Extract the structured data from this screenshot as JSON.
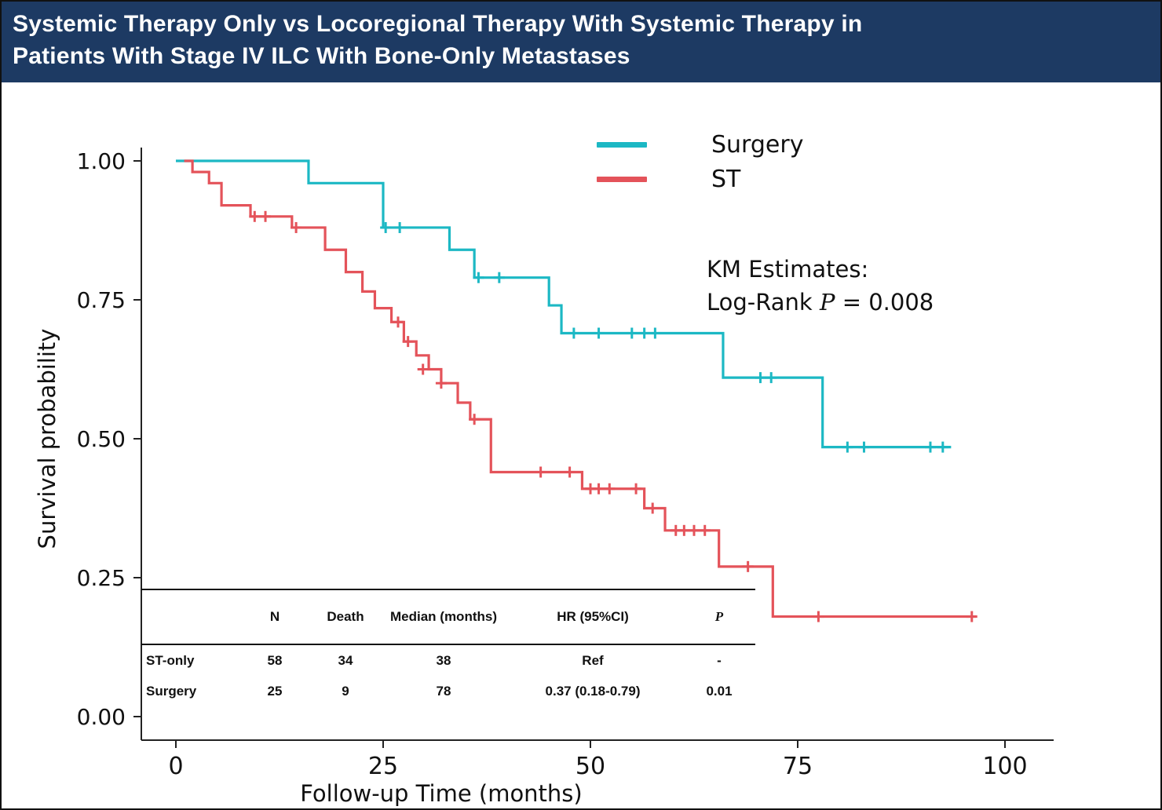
{
  "header": {
    "title_line1": "Systemic Therapy Only vs Locoregional Therapy With Systemic Therapy in",
    "title_line2": "Patients With Stage IV ILC With Bone-Only Metastases",
    "bg_color": "#1d3a63",
    "text_color": "#ffffff"
  },
  "axes": {
    "x_label": "Follow-up Time (months)",
    "y_label": "Survival probability",
    "x_ticks": [
      {
        "value": 0,
        "label": "0"
      },
      {
        "value": 25,
        "label": "25"
      },
      {
        "value": 50,
        "label": "50"
      },
      {
        "value": 75,
        "label": "75"
      },
      {
        "value": 100,
        "label": "100"
      }
    ],
    "y_ticks": [
      {
        "value": 1.0,
        "label": "1.00"
      },
      {
        "value": 0.75,
        "label": "0.75"
      },
      {
        "value": 0.5,
        "label": "0.50"
      },
      {
        "value": 0.25,
        "label": "0.25"
      },
      {
        "value": 0.0,
        "label": "0.00"
      }
    ]
  },
  "legend": {
    "items": [
      {
        "label": "Surgery",
        "color": "#1cb8c4"
      },
      {
        "label": "ST",
        "color": "#e4535a"
      }
    ]
  },
  "annotation": {
    "line1": "KM Estimates:",
    "logrank_prefix": "Log-Rank",
    "p_symbol": "P",
    "logrank_value": "= 0.008"
  },
  "table": {
    "headers": [
      "",
      "N",
      "Death",
      "Median (months)",
      "HR (95%CI)",
      "P"
    ],
    "rows": [
      {
        "label": "ST-only",
        "n": "58",
        "death": "34",
        "median": "38",
        "hr": "Ref",
        "p": "-"
      },
      {
        "label": "Surgery",
        "n": "25",
        "death": "9",
        "median": "78",
        "hr": "0.37 (0.18-0.79)",
        "p": "0.01"
      }
    ]
  },
  "chart_data": {
    "type": "line",
    "subtype": "kaplan-meier-step",
    "title": "",
    "xlabel": "Follow-up Time (months)",
    "ylabel": "Survival probability",
    "xlim": [
      0,
      100
    ],
    "ylim": [
      0,
      1
    ],
    "grid": false,
    "legend_position": "top-right-inside",
    "km_annotation": "Log-Rank P = 0.008",
    "series": [
      {
        "name": "Surgery",
        "color": "#1cb8c4",
        "steps": [
          [
            0,
            1.0
          ],
          [
            16,
            0.96
          ],
          [
            25,
            0.88
          ],
          [
            33,
            0.84
          ],
          [
            36,
            0.79
          ],
          [
            45,
            0.74
          ],
          [
            46.5,
            0.69
          ],
          [
            66,
            0.61
          ],
          [
            78,
            0.485
          ]
        ],
        "end": 93.5,
        "censors": [
          [
            25.3,
            0.88
          ],
          [
            27,
            0.88
          ],
          [
            36.5,
            0.79
          ],
          [
            39,
            0.79
          ],
          [
            48,
            0.69
          ],
          [
            51,
            0.69
          ],
          [
            55,
            0.69
          ],
          [
            56.5,
            0.69
          ],
          [
            57.8,
            0.69
          ],
          [
            70.5,
            0.61
          ],
          [
            71.8,
            0.61
          ],
          [
            81,
            0.485
          ],
          [
            83,
            0.485
          ],
          [
            91,
            0.485
          ],
          [
            92.5,
            0.485
          ]
        ]
      },
      {
        "name": "ST",
        "color": "#e4535a",
        "steps": [
          [
            1,
            1.0
          ],
          [
            2,
            0.98
          ],
          [
            4,
            0.96
          ],
          [
            5.5,
            0.92
          ],
          [
            9,
            0.9
          ],
          [
            14,
            0.88
          ],
          [
            18,
            0.84
          ],
          [
            20.5,
            0.8
          ],
          [
            22.5,
            0.765
          ],
          [
            24,
            0.735
          ],
          [
            26,
            0.71
          ],
          [
            27.5,
            0.675
          ],
          [
            29,
            0.65
          ],
          [
            30.5,
            0.625
          ],
          [
            32,
            0.6
          ],
          [
            34,
            0.565
          ],
          [
            35.5,
            0.535
          ],
          [
            38,
            0.44
          ],
          [
            49,
            0.41
          ],
          [
            56.5,
            0.375
          ],
          [
            59,
            0.335
          ],
          [
            65.5,
            0.27
          ],
          [
            72,
            0.18
          ]
        ],
        "end": 96.5,
        "censors": [
          [
            9.5,
            0.9
          ],
          [
            10.8,
            0.9
          ],
          [
            14.5,
            0.88
          ],
          [
            26.8,
            0.71
          ],
          [
            28,
            0.675
          ],
          [
            29.8,
            0.625
          ],
          [
            32,
            0.6
          ],
          [
            36,
            0.535
          ],
          [
            44,
            0.44
          ],
          [
            47.5,
            0.44
          ],
          [
            50,
            0.41
          ],
          [
            51,
            0.41
          ],
          [
            52.3,
            0.41
          ],
          [
            55.5,
            0.41
          ],
          [
            57.5,
            0.375
          ],
          [
            60.3,
            0.335
          ],
          [
            61.3,
            0.335
          ],
          [
            62.5,
            0.335
          ],
          [
            63.8,
            0.335
          ],
          [
            69,
            0.27
          ],
          [
            77.5,
            0.18
          ],
          [
            96,
            0.18
          ]
        ]
      }
    ]
  }
}
